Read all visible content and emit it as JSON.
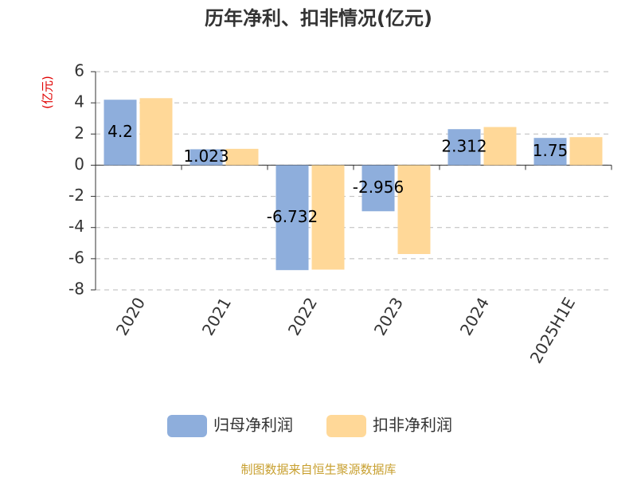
{
  "chart_data": {
    "type": "bar",
    "title": "历年净利、扣非情况(亿元)",
    "y_label": "(亿元)",
    "categories": [
      "2020",
      "2021",
      "2022",
      "2023",
      "2024",
      "2025H1E"
    ],
    "series": [
      {
        "name": "归母净利润",
        "color": "#8eaedc",
        "values": [
          4.2,
          1.023,
          -6.732,
          -2.956,
          2.312,
          1.75
        ],
        "value_labels": [
          "4.2",
          "1.023",
          "-6.732",
          "-2.956",
          "2.312",
          "1.75"
        ]
      },
      {
        "name": "扣非净利润",
        "color": "#ffd898",
        "values": [
          4.3,
          1.05,
          -6.7,
          -5.7,
          2.45,
          1.8
        ]
      }
    ],
    "ylim": [
      -8,
      6
    ],
    "yticks": [
      -8,
      -6,
      -4,
      -2,
      0,
      2,
      4,
      6
    ],
    "grid": true,
    "source": "制图数据来自恒生聚源数据库"
  }
}
